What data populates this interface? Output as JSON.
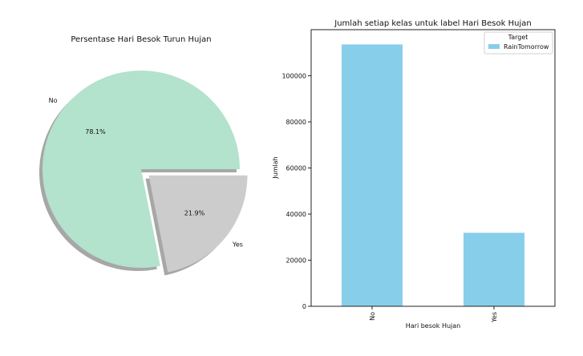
{
  "chart_data": [
    {
      "type": "pie",
      "title": "Persentase Hari Besok Turun Hujan",
      "categories": [
        "No",
        "Yes"
      ],
      "values": [
        78.1,
        21.9
      ],
      "value_labels": [
        "78.1%",
        "21.9%"
      ],
      "explode": [
        0,
        0.1
      ],
      "shadow": true,
      "colors": [
        "#b3e2cd",
        "#cccccc"
      ]
    },
    {
      "type": "bar",
      "title": "Jumlah setiap kelas untuk label Hari Besok Hujan",
      "categories": [
        "No",
        "Yes"
      ],
      "series": [
        {
          "name": "RainTomorrow",
          "values": [
            113583,
            31877
          ],
          "color": "#87ceeb"
        }
      ],
      "xlabel": "Hari besok Hujan",
      "ylabel": "Jumlah",
      "ylim": [
        0,
        120000
      ],
      "yticks": [
        0,
        20000,
        40000,
        60000,
        80000,
        100000
      ],
      "ytick_labels": [
        "0",
        "20000",
        "40000",
        "60000",
        "80000",
        "100000"
      ],
      "xtick_rotation": 90,
      "legend": {
        "title": "Target",
        "placement": "top-right"
      },
      "grid": false
    }
  ]
}
